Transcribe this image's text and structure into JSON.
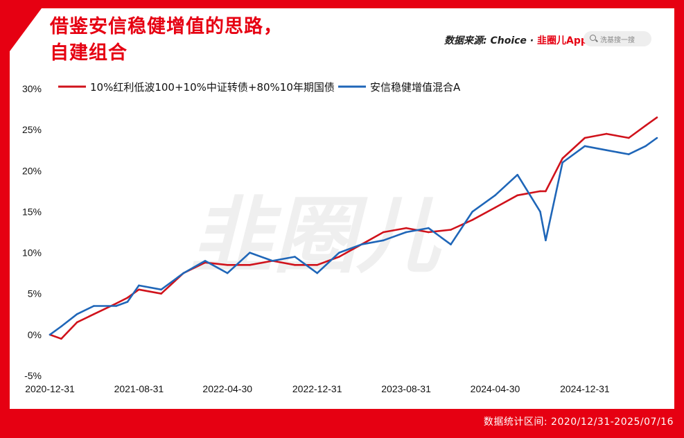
{
  "header": {
    "title_line1": "借鉴安信稳健增值的思路，",
    "title_line2": "自建组合",
    "source_prefix": "数据来源: Choice · ",
    "source_brand": "韭圈儿App",
    "search_placeholder": "洗基搜一搜"
  },
  "footer": {
    "range_text": "数据统计区间: 2020/12/31-2025/07/16"
  },
  "watermark": "韭圈儿",
  "colors": {
    "accent": "#e60012",
    "series_red": "#d0121b",
    "series_blue": "#1f66b8"
  },
  "chart_data": {
    "type": "line",
    "title": "",
    "xlabel": "",
    "ylabel": "",
    "ylim": [
      -5,
      30
    ],
    "y_ticks": [
      "30%",
      "25%",
      "20%",
      "15%",
      "10%",
      "5%",
      "0%",
      "-5%"
    ],
    "x_ticks": [
      "2020-12-31",
      "2021-08-31",
      "2022-04-30",
      "2022-12-31",
      "2023-08-31",
      "2024-04-30",
      "2024-12-31"
    ],
    "grid": false,
    "legend": "top",
    "x": [
      "2020-12-31",
      "2021-01-31",
      "2021-03-15",
      "2021-04-30",
      "2021-06-30",
      "2021-07-31",
      "2021-08-31",
      "2021-10-31",
      "2021-12-31",
      "2022-02-28",
      "2022-04-30",
      "2022-06-30",
      "2022-08-31",
      "2022-10-31",
      "2022-12-31",
      "2023-03-01",
      "2023-05-01",
      "2023-06-30",
      "2023-08-31",
      "2023-10-31",
      "2023-12-31",
      "2024-02-28",
      "2024-04-30",
      "2024-06-30",
      "2024-08-31",
      "2024-09-15",
      "2024-10-31",
      "2024-12-31",
      "2025-02-28",
      "2025-04-30",
      "2025-06-15",
      "2025-07-16"
    ],
    "series": [
      {
        "name": "10%红利低波100+10%中证转债+80%10年期国债",
        "color": "#d0121b",
        "values": [
          0.0,
          -0.5,
          1.5,
          2.5,
          3.8,
          4.5,
          5.5,
          5.0,
          7.5,
          8.8,
          8.5,
          8.5,
          9.0,
          8.5,
          8.5,
          9.5,
          11.0,
          12.5,
          13.0,
          12.5,
          12.8,
          14.0,
          15.5,
          17.0,
          17.5,
          17.5,
          21.5,
          24.0,
          24.5,
          24.0,
          25.5,
          26.5
        ]
      },
      {
        "name": "安信稳健增值混合A",
        "color": "#1f66b8",
        "values": [
          0.0,
          1.0,
          2.5,
          3.5,
          3.5,
          4.0,
          6.0,
          5.5,
          7.5,
          9.0,
          7.5,
          10.0,
          9.0,
          9.5,
          7.5,
          10.0,
          11.0,
          11.5,
          12.5,
          13.0,
          11.0,
          15.0,
          17.0,
          19.5,
          15.0,
          11.5,
          21.0,
          23.0,
          22.5,
          22.0,
          23.0,
          24.0
        ]
      }
    ]
  }
}
